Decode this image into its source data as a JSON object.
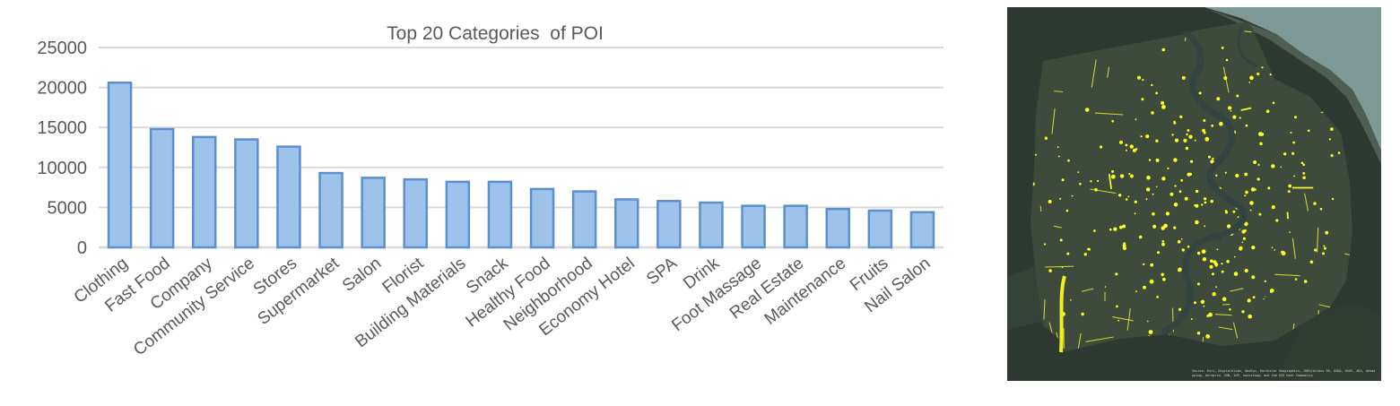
{
  "chart_data": {
    "type": "bar",
    "title": "Top 20 Categories  of POI",
    "xlabel": "",
    "ylabel": "",
    "ylim": [
      0,
      25000
    ],
    "yticks": [
      0,
      5000,
      10000,
      15000,
      20000,
      25000
    ],
    "grid": true,
    "legend": "none",
    "categories": [
      "Clothing",
      "Fast Food",
      "Company",
      "Community Service",
      "Stores",
      "Supermarket",
      "Salon",
      "Florist",
      "Building Materials",
      "Snack",
      "Healthy Food",
      "Neighborhood",
      "Economy Hotel",
      "SPA",
      "Drink",
      "Foot Massage",
      "Real Estate",
      "Maintenance",
      "Fruits",
      "Nail Salon"
    ],
    "values": [
      20600,
      14800,
      13800,
      13500,
      12600,
      9300,
      8700,
      8500,
      8200,
      8200,
      7300,
      7000,
      6000,
      5800,
      5600,
      5200,
      5200,
      4800,
      4600,
      4400
    ],
    "colors": {
      "bar_fill": "#9ec3ea",
      "bar_stroke": "#5b8fd0",
      "grid": "#d9d9d9",
      "text": "#595959"
    }
  },
  "map": {
    "credit": "Source: Esri, DigitalGlobe, GeoEye, Earthstar Geographics, CNES/Airbus DS, USDA, USGS, AEX, Getmapping, Aerogrid, IGN, IGP, swisstopo, and the GIS User Community",
    "colors": {
      "poi": "#ffff22",
      "land": "#3a463a",
      "water": "#7d9a97",
      "river": "#33433f"
    }
  }
}
